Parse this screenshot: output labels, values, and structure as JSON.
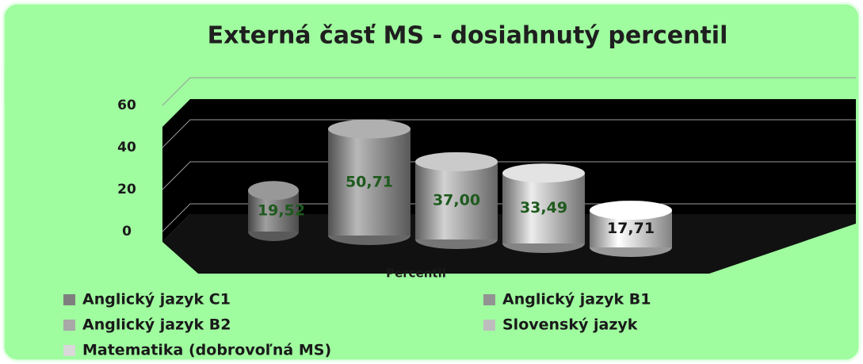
{
  "chart_data": {
    "type": "bar",
    "title": "Externá časť MS - dosiahnutý percentil",
    "categories": [
      "Percentil"
    ],
    "series": [
      {
        "name": "Anglický jazyk C1",
        "color": "#7f7f7f",
        "values": [
          19.52
        ],
        "value_labels": [
          "19,52"
        ]
      },
      {
        "name": "Anglický jazyk B1",
        "color": "#939393",
        "values": [
          50.71
        ],
        "value_labels": [
          "50,71"
        ]
      },
      {
        "name": "Anglický jazyk B2",
        "color": "#a8a8a8",
        "values": [
          37.0
        ],
        "value_labels": [
          "37,00"
        ]
      },
      {
        "name": "Slovenský jazyk",
        "color": "#bdbdbd",
        "values": [
          33.49
        ],
        "value_labels": [
          "33,49"
        ]
      },
      {
        "name": "Matematika (dobrovoľná MS)",
        "color": "#d9d9d9",
        "values": [
          17.71
        ],
        "value_labels": [
          "17,71"
        ]
      }
    ],
    "ylim": [
      0,
      60
    ],
    "yticks": [
      0,
      20,
      40,
      60
    ],
    "grid": true,
    "legend": "bottom"
  }
}
